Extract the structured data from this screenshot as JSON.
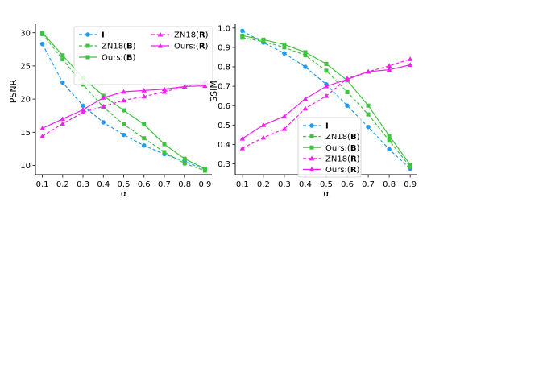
{
  "chart_data": [
    {
      "type": "line",
      "xlabel": "α",
      "ylabel": "PSNR",
      "x": [
        0.1,
        0.2,
        0.3,
        0.4,
        0.5,
        0.6,
        0.7,
        0.8,
        0.9
      ],
      "xticks": [
        "0.1",
        "0.2",
        "0.3",
        "0.4",
        "0.5",
        "0.6",
        "0.7",
        "0.8",
        "0.9"
      ],
      "ylim": [
        8.6,
        31.3
      ],
      "yticks": [
        "10",
        "15",
        "20",
        "25",
        "30"
      ],
      "ytick_values": [
        10,
        15,
        20,
        25,
        30
      ],
      "legend_position": "top-center",
      "legend_columns": 2,
      "series": [
        {
          "key": "I",
          "label_pre": "",
          "label_bold": "I",
          "label_post": "",
          "color": "#1f9bef",
          "marker": "circle",
          "dash": true,
          "values": [
            28.3,
            22.5,
            19.0,
            16.5,
            14.6,
            13.0,
            11.7,
            10.6,
            9.4
          ]
        },
        {
          "key": "ZN18-B",
          "label_pre": "ZN18(",
          "label_bold": "B",
          "label_post": ")",
          "color": "#3fc23f",
          "marker": "square",
          "dash": true,
          "values": [
            29.8,
            26.0,
            22.2,
            18.8,
            16.2,
            14.1,
            12.0,
            10.3,
            9.2
          ]
        },
        {
          "key": "Ours-B",
          "label_pre": "Ours:(",
          "label_bold": "B",
          "label_post": ")",
          "color": "#3fc23f",
          "marker": "square",
          "dash": false,
          "values": [
            30.0,
            26.6,
            23.2,
            20.5,
            18.3,
            16.2,
            13.2,
            11.0,
            9.5
          ]
        },
        {
          "key": "ZN18-R",
          "label_pre": "ZN18(",
          "label_bold": "R",
          "label_post": ")",
          "color": "#ee22ee",
          "marker": "triangle",
          "dash": true,
          "values": [
            14.4,
            16.3,
            18.0,
            18.9,
            19.8,
            20.4,
            21.1,
            21.9,
            22.6
          ]
        },
        {
          "key": "Ours-R",
          "label_pre": "Ours:(",
          "label_bold": "R",
          "label_post": ")",
          "color": "#ee22ee",
          "marker": "triangle",
          "dash": false,
          "values": [
            15.6,
            17.0,
            18.4,
            20.2,
            21.1,
            21.3,
            21.5,
            21.9,
            22.0
          ]
        }
      ]
    },
    {
      "type": "line",
      "xlabel": "α",
      "ylabel": "SSIM",
      "x": [
        0.1,
        0.2,
        0.3,
        0.4,
        0.5,
        0.6,
        0.7,
        0.8,
        0.9
      ],
      "xticks": [
        "0.1",
        "0.2",
        "0.3",
        "0.4",
        "0.5",
        "0.6",
        "0.7",
        "0.8",
        "0.9"
      ],
      "ylim": [
        0.244,
        1.02
      ],
      "yticks": [
        "0.3",
        "0.4",
        "0.5",
        "0.6",
        "0.7",
        "0.8",
        "0.9",
        "1.0"
      ],
      "ytick_values": [
        0.3,
        0.4,
        0.5,
        0.6,
        0.7,
        0.8,
        0.9,
        1.0
      ],
      "legend_position": "center",
      "legend_columns": 1,
      "series": [
        {
          "key": "I",
          "label_pre": "",
          "label_bold": "I",
          "label_post": "",
          "color": "#1f9bef",
          "marker": "circle",
          "dash": true,
          "values": [
            0.985,
            0.925,
            0.87,
            0.8,
            0.71,
            0.6,
            0.49,
            0.375,
            0.275
          ]
        },
        {
          "key": "ZN18-B",
          "label_pre": "ZN18(",
          "label_bold": "B",
          "label_post": ")",
          "color": "#3fc23f",
          "marker": "square",
          "dash": true,
          "values": [
            0.95,
            0.93,
            0.9,
            0.86,
            0.78,
            0.67,
            0.555,
            0.42,
            0.285
          ]
        },
        {
          "key": "Ours-B",
          "label_pre": "Ours:(",
          "label_bold": "B",
          "label_post": ")",
          "color": "#3fc23f",
          "marker": "square",
          "dash": false,
          "values": [
            0.96,
            0.94,
            0.915,
            0.875,
            0.815,
            0.73,
            0.6,
            0.445,
            0.295
          ]
        },
        {
          "key": "ZN18-R",
          "label_pre": "ZN18(",
          "label_bold": "R",
          "label_post": ")",
          "color": "#ee22ee",
          "marker": "triangle",
          "dash": true,
          "values": [
            0.38,
            0.435,
            0.48,
            0.585,
            0.65,
            0.74,
            0.775,
            0.805,
            0.84
          ]
        },
        {
          "key": "Ours-R",
          "label_pre": "Ours:(",
          "label_bold": "R",
          "label_post": ")",
          "color": "#ee22ee",
          "marker": "triangle",
          "dash": false,
          "values": [
            0.43,
            0.5,
            0.545,
            0.635,
            0.7,
            0.735,
            0.775,
            0.785,
            0.81
          ]
        }
      ]
    }
  ]
}
